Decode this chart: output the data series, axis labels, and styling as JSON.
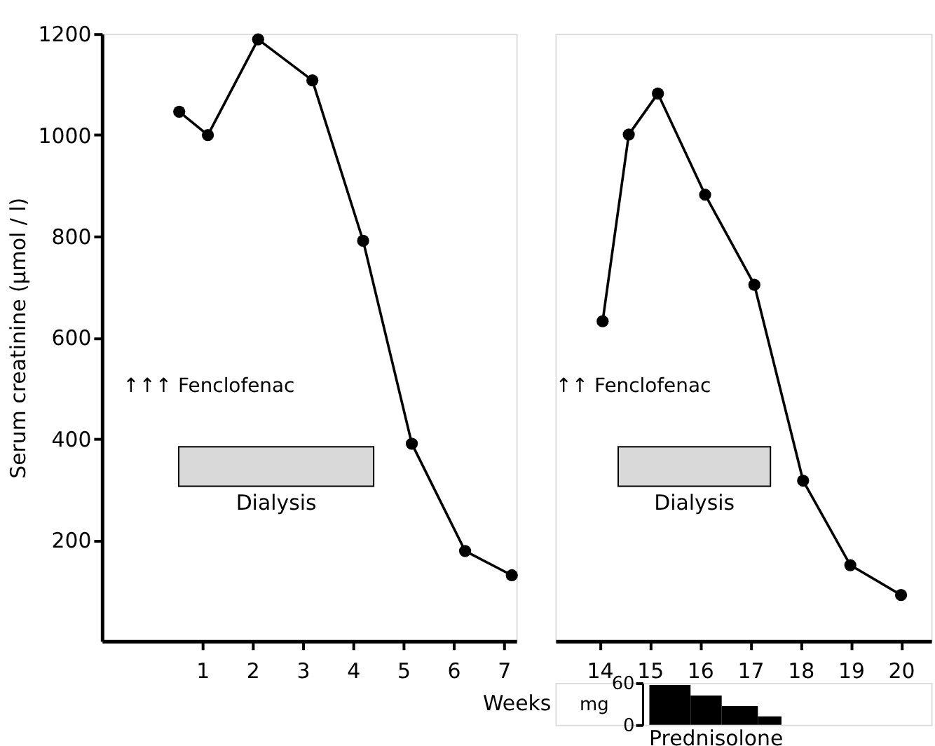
{
  "chart_data": [
    {
      "type": "line",
      "xlabel": "Weeks",
      "ylabel": "Serum creatinine (μmol / l)",
      "series": [
        {
          "color": "#000000",
          "x": [
            0.54,
            1.11,
            2.11,
            3.19,
            4.2,
            5.17,
            6.23,
            7.16
          ],
          "values": [
            1046,
            1000,
            1189,
            1108,
            791,
            390,
            178,
            130
          ]
        }
      ],
      "xlim": [
        -1,
        7.25
      ],
      "xticks": [
        1,
        2,
        3,
        4,
        5,
        6,
        7
      ],
      "ylim": [
        0,
        1200
      ],
      "yticks": [
        200,
        400,
        600,
        800,
        1000,
        1200
      ],
      "marker": "circle",
      "line_style": "solid",
      "annotations": [
        "↑↑↑ Fenclofenac"
      ],
      "bands": [
        {
          "axis": "x",
          "from": 0.53,
          "to": 4.41,
          "label": "Dialysis",
          "color": "#d9d9d9"
        }
      ]
    },
    {
      "type": "line",
      "series": [
        {
          "color": "#000000",
          "x": [
            14.06,
            14.58,
            15.16,
            16.1,
            17.08,
            18.05,
            18.99,
            20.0
          ],
          "values": [
            632,
            1001,
            1082,
            882,
            704,
            317,
            150,
            91
          ]
        }
      ],
      "xlim": [
        13.12,
        20.6
      ],
      "xticks": [
        14,
        15,
        16,
        17,
        18,
        19,
        20
      ],
      "ylim": [
        0,
        1200
      ],
      "tick_labels": "x",
      "marker": "circle",
      "line_style": "solid",
      "annotations": [
        "↑↑ Fenclofenac"
      ],
      "bands": [
        {
          "axis": "x",
          "from": 14.37,
          "to": 17.4,
          "label": "Dialysis",
          "color": "#d9d9d9"
        }
      ]
    },
    {
      "type": "histogram",
      "xlabel": "Prednisolone",
      "ylabel": "mg",
      "color": "#000000",
      "bins": [
        14.99,
        15.81,
        16.43,
        17.15,
        17.62
      ],
      "values": [
        57,
        42,
        27,
        12
      ],
      "xlim": [
        13.12,
        20.6
      ],
      "ylim": [
        0,
        60
      ],
      "yticks": [
        0,
        60
      ],
      "tick_labels": "y"
    }
  ]
}
